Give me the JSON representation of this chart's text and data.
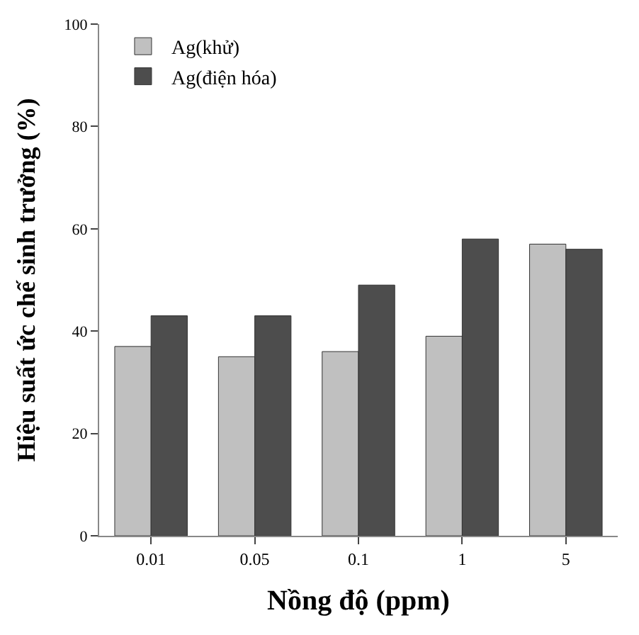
{
  "chart_data": {
    "type": "bar",
    "xlabel": "Nồng độ (ppm)",
    "ylabel": "Hiệu suất ức chế sinh trưởng (%)",
    "categories": [
      "0.01",
      "0.05",
      "0.1",
      "1",
      "5"
    ],
    "series": [
      {
        "name": "Ag(khử)",
        "color": "#c0c0c0",
        "values": [
          37,
          35,
          36,
          39,
          57
        ]
      },
      {
        "name": "Ag(điện hóa)",
        "color": "#4d4d4d",
        "values": [
          43,
          43,
          49,
          58,
          56
        ]
      }
    ],
    "ylim": [
      0,
      100
    ],
    "yticks": [
      0,
      20,
      40,
      60,
      80,
      100
    ],
    "legend": "top left"
  }
}
